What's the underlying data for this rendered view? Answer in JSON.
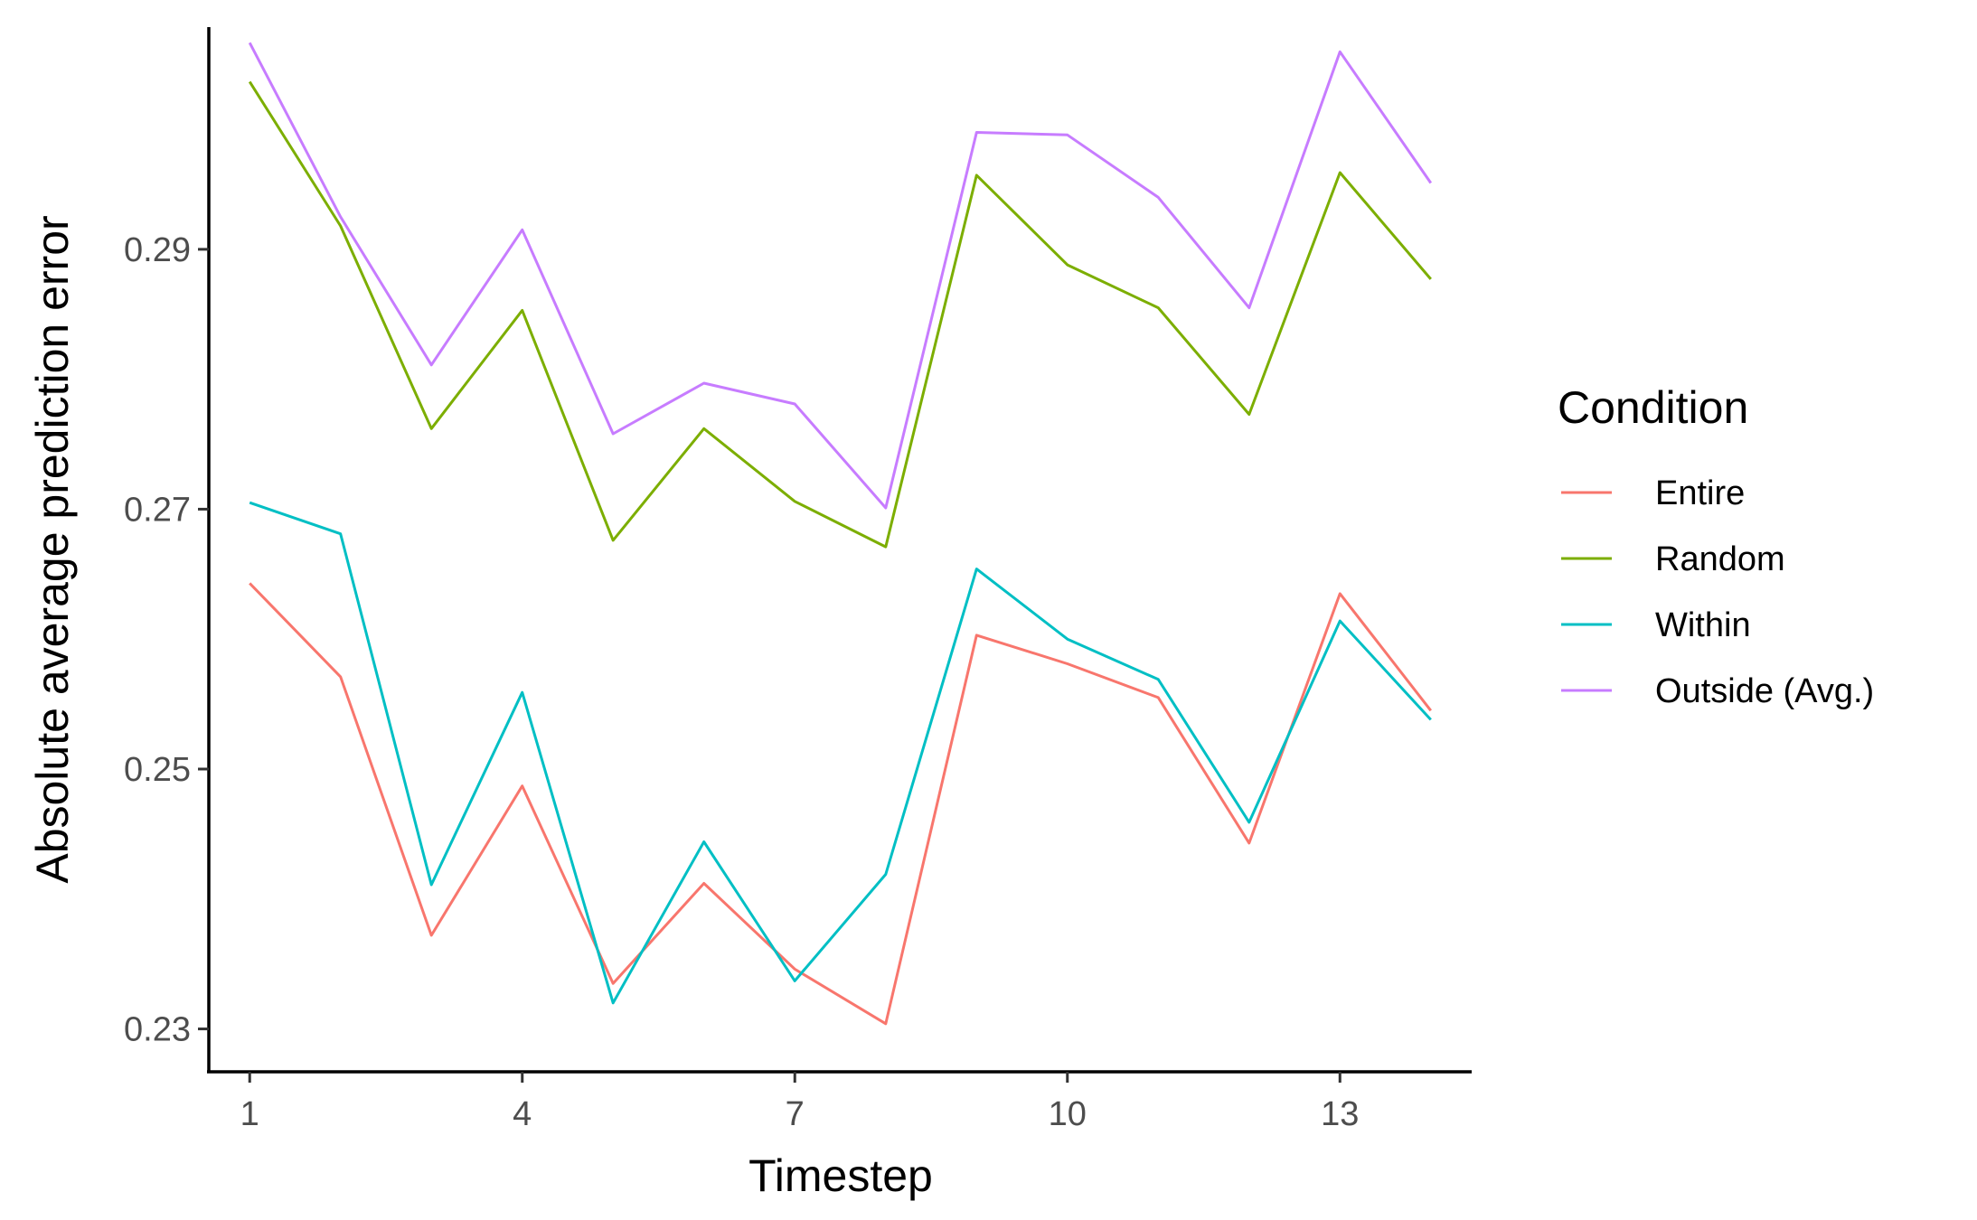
{
  "chart_data": {
    "type": "line",
    "title": "",
    "xlabel": "Timestep",
    "ylabel": "Absolute average prediction error",
    "xlim": [
      0.55,
      14.45
    ],
    "ylim": [
      0.2267,
      0.3071
    ],
    "x_ticks": [
      1,
      4,
      7,
      10,
      13
    ],
    "x_tick_labels": [
      "1",
      "4",
      "7",
      "10",
      "13"
    ],
    "y_ticks": [
      0.23,
      0.25,
      0.27,
      0.29
    ],
    "y_tick_labels": [
      "0.23",
      "0.25",
      "0.27",
      "0.29"
    ],
    "grid": false,
    "legend": {
      "title": "Condition",
      "position": "right"
    },
    "x": [
      1,
      2,
      3,
      4,
      5,
      6,
      7,
      8,
      9,
      10,
      11,
      12,
      13,
      14
    ],
    "series": [
      {
        "name": "Entire",
        "color": "#F8766D",
        "values": [
          0.2643,
          0.2571,
          0.2372,
          0.2487,
          0.2335,
          0.2412,
          0.2346,
          0.2304,
          0.2603,
          0.2581,
          0.2555,
          0.2443,
          0.2635,
          0.2545
        ]
      },
      {
        "name": "Random",
        "color": "#7CAE00",
        "values": [
          0.3029,
          0.2918,
          0.2762,
          0.2853,
          0.2676,
          0.2762,
          0.2706,
          0.2671,
          0.2957,
          0.2888,
          0.2855,
          0.2773,
          0.2959,
          0.2877
        ]
      },
      {
        "name": "Within",
        "color": "#00BFC4",
        "values": [
          0.2705,
          0.2681,
          0.2411,
          0.2559,
          0.232,
          0.2444,
          0.2337,
          0.2419,
          0.2654,
          0.26,
          0.2569,
          0.2459,
          0.2614,
          0.2538
        ]
      },
      {
        "name": "Outside (Avg.)",
        "color": "#C77CFF",
        "values": [
          0.3059,
          0.2925,
          0.2811,
          0.2915,
          0.2758,
          0.2797,
          0.2781,
          0.2701,
          0.299,
          0.2988,
          0.294,
          0.2855,
          0.3052,
          0.2951
        ]
      }
    ]
  }
}
